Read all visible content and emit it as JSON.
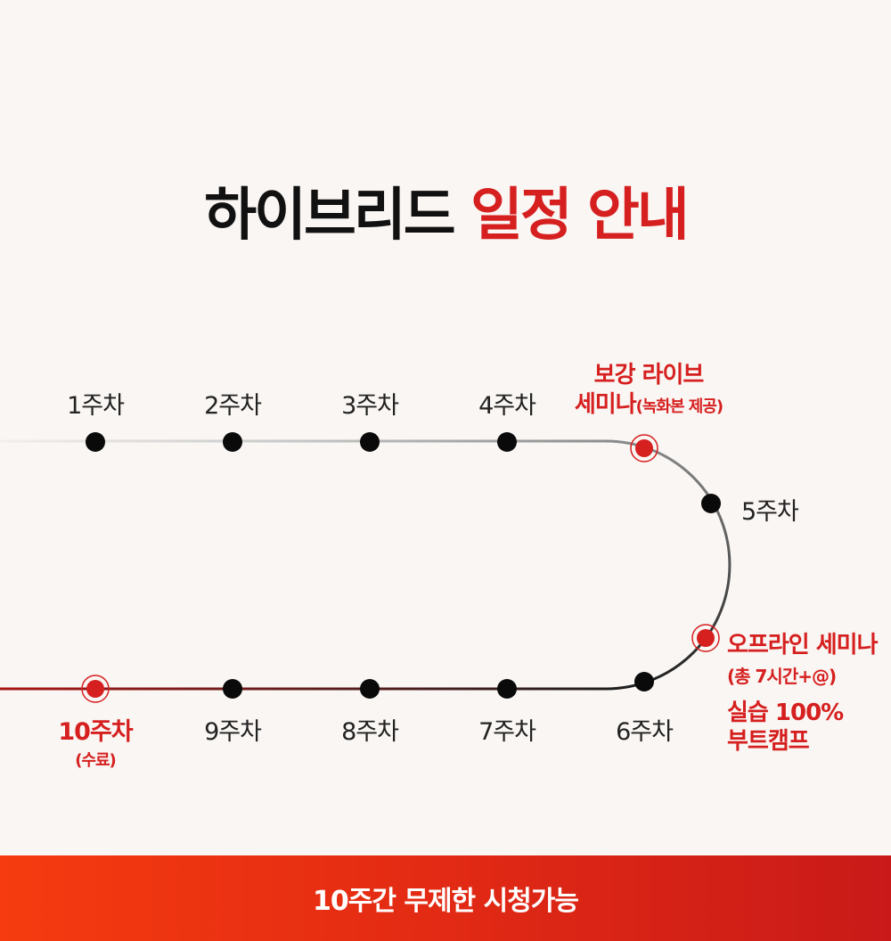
{
  "title": {
    "main": "하이브리드",
    "accent": "일정 안내"
  },
  "weeks": {
    "w1": "1주차",
    "w2": "2주차",
    "w3": "3주차",
    "w4": "4주차",
    "w5": "5주차",
    "w6": "6주차",
    "w7": "7주차",
    "w8": "8주차",
    "w9": "9주차",
    "w10": "10주차",
    "w10_note": "(수료)"
  },
  "live_seminar": {
    "line1": "보강 라이브",
    "line2": "세미나",
    "note": "(녹화본 제공)"
  },
  "offline_seminar": {
    "line1": "오프라인 세미나",
    "line2": "(총 7시간+@)",
    "line3": "실습 100%",
    "line4": "부트캠프"
  },
  "footer": {
    "text": "10주간 무제한 시청가능"
  },
  "colors": {
    "accent": "#d61f1f",
    "dot": "#0a0a0a",
    "background": "#f9f6f3"
  }
}
